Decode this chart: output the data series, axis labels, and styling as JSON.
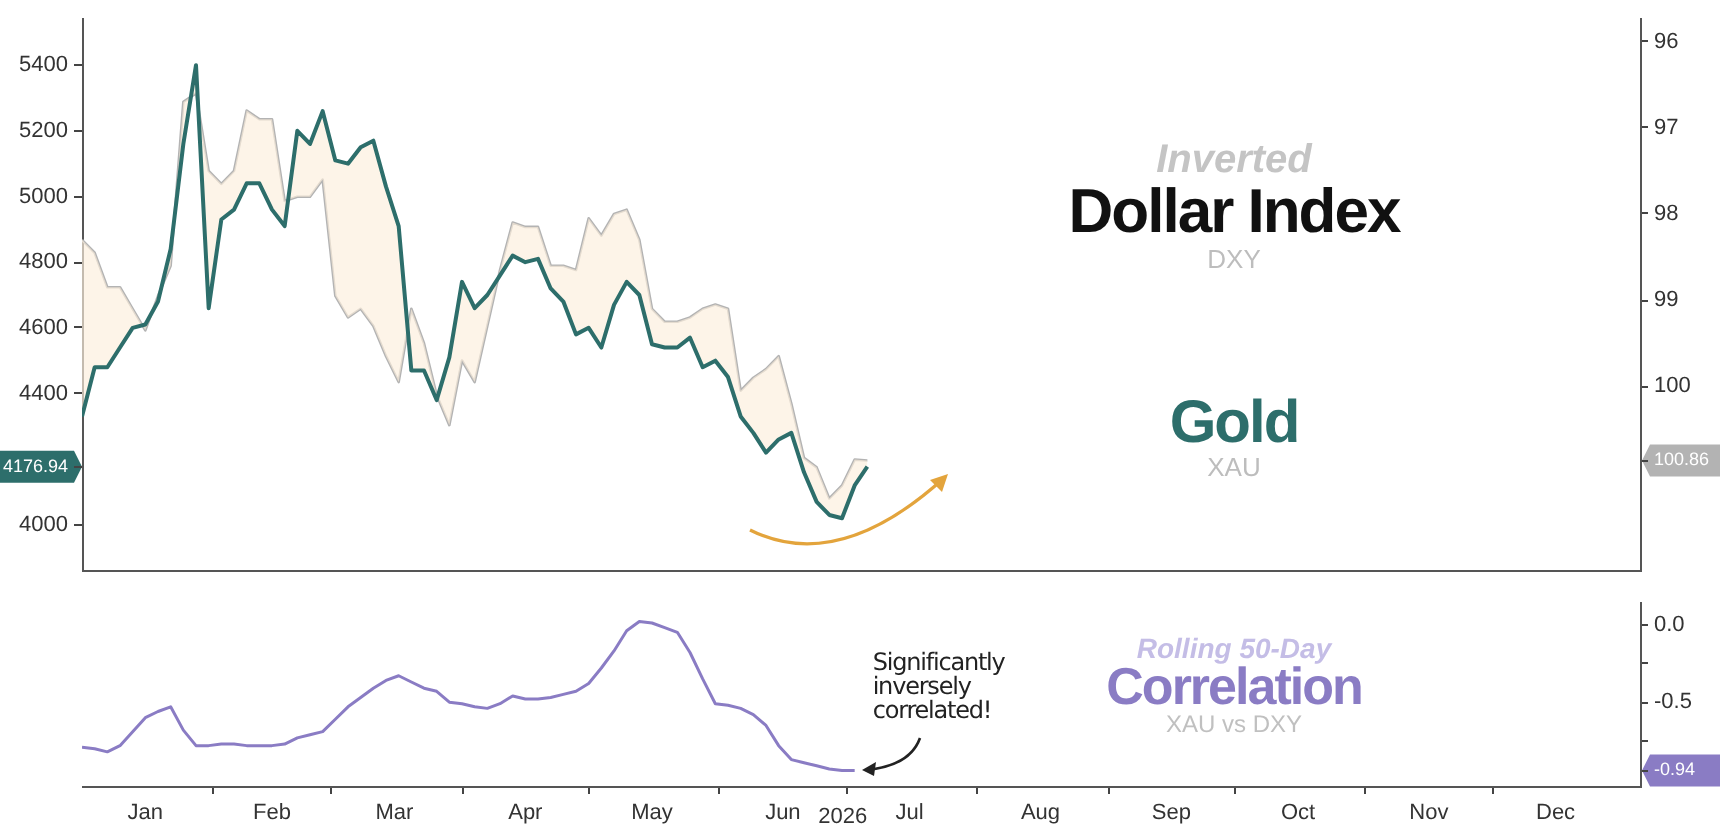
{
  "chart_data": [
    {
      "type": "line",
      "xlim": [
        "2026-01-01",
        "2027-01-05"
      ],
      "ylim": [
        3860,
        5540
      ],
      "yticks": [
        4000,
        {
          "value": 4176.94,
          "label": "4176.94"
        },
        4400,
        4600,
        4800,
        5000,
        5200,
        5400
      ],
      "y2lim": [
        102.14,
        95.74
      ],
      "y2ticks": [
        96,
        97,
        98,
        99,
        100,
        {
          "value": 100.86,
          "label": "100.86"
        }
      ],
      "tick_labels": "y",
      "grid": false,
      "legend": false,
      "marker": "none",
      "line_style": "solid",
      "annotations": [
        "Inverted",
        "DXY",
        "XAU"
      ],
      "x": [
        "2026-01-01",
        "2026-01-04",
        "2026-01-07",
        "2026-01-10",
        "2026-01-13",
        "2026-01-16",
        "2026-01-19",
        "2026-01-22",
        "2026-01-25",
        "2026-01-28",
        "2026-01-31",
        "2026-02-03",
        "2026-02-06",
        "2026-02-09",
        "2026-02-12",
        "2026-02-15",
        "2026-02-18",
        "2026-02-21",
        "2026-02-24",
        "2026-02-27",
        "2026-03-02",
        "2026-03-05",
        "2026-03-08",
        "2026-03-11",
        "2026-03-14",
        "2026-03-17",
        "2026-03-20",
        "2026-03-23",
        "2026-03-26",
        "2026-03-29",
        "2026-04-01",
        "2026-04-04",
        "2026-04-07",
        "2026-04-10",
        "2026-04-13",
        "2026-04-16",
        "2026-04-19",
        "2026-04-22",
        "2026-04-25",
        "2026-04-28",
        "2026-05-01",
        "2026-05-04",
        "2026-05-07",
        "2026-05-10",
        "2026-05-13",
        "2026-05-16",
        "2026-05-19",
        "2026-05-22",
        "2026-05-25",
        "2026-05-28",
        "2026-05-31",
        "2026-06-03",
        "2026-06-06",
        "2026-06-09",
        "2026-06-12",
        "2026-06-15",
        "2026-06-18",
        "2026-06-21",
        "2026-06-24",
        "2026-06-27",
        "2026-06-30",
        "2026-07-03",
        "2026-07-06"
      ],
      "series": [
        {
          "name": "Gold",
          "color": "#2d6e6b",
          "values": [
            4330,
            4480,
            4480,
            4540,
            4600,
            4610,
            4680,
            4840,
            5160,
            5400,
            4660,
            4930,
            4960,
            5040,
            5040,
            4960,
            4910,
            5200,
            5160,
            5260,
            5110,
            5100,
            5150,
            5170,
            5030,
            4910,
            4470,
            4470,
            4380,
            4510,
            4740,
            4660,
            4700,
            4760,
            4820,
            4800,
            4810,
            4720,
            4680,
            4580,
            4600,
            4540,
            4670,
            4740,
            4700,
            4550,
            4540,
            4540,
            4570,
            4480,
            4500,
            4450,
            4330,
            4280,
            4220,
            4260,
            4280,
            4160,
            4070,
            4030,
            4020,
            4120,
            4176.94
          ]
        },
        {
          "name": "Dollar Index",
          "color": "#b3b3b3",
          "axis": "y2",
          "values": [
            98.3,
            98.45,
            98.85,
            98.85,
            99.1,
            99.35,
            98.95,
            98.6,
            96.7,
            96.6,
            97.5,
            97.65,
            97.5,
            96.8,
            96.9,
            96.9,
            97.85,
            97.8,
            97.8,
            97.6,
            98.95,
            99.2,
            99.1,
            99.3,
            99.65,
            99.95,
            99.1,
            99.5,
            100.1,
            100.45,
            99.7,
            99.95,
            99.3,
            98.65,
            98.1,
            98.15,
            98.15,
            98.6,
            98.6,
            98.65,
            98.05,
            98.25,
            98.0,
            97.95,
            98.3,
            99.1,
            99.25,
            99.25,
            99.2,
            99.1,
            99.05,
            99.1,
            100.05,
            99.9,
            99.8,
            99.65,
            100.2,
            100.83,
            100.94,
            101.3,
            101.15,
            100.85,
            100.86
          ]
        }
      ]
    },
    {
      "type": "line",
      "xlim": [
        "2026-01-01",
        "2027-01-05"
      ],
      "xlabel": "2026",
      "ylim": [
        -1.04,
        0.14
      ],
      "yticks": [
        {
          "value": 0,
          "label": "0.0"
        },
        {
          "value": -0.25,
          "label": null
        },
        {
          "value": -0.5,
          "label": "-0.5"
        },
        {
          "value": -0.75,
          "label": null
        },
        {
          "value": -0.94,
          "label": "-0.94"
        }
      ],
      "xticks": [
        {
          "value": "2026-01-16",
          "label": "Jan"
        },
        {
          "value": "2026-02-01",
          "label": null
        },
        {
          "value": "2026-02-15",
          "label": "Feb"
        },
        {
          "value": "2026-03-01",
          "label": null
        },
        {
          "value": "2026-03-16",
          "label": "Mar"
        },
        {
          "value": "2026-04-01",
          "label": null
        },
        {
          "value": "2026-04-16",
          "label": "Apr"
        },
        {
          "value": "2026-05-01",
          "label": null
        },
        {
          "value": "2026-05-16",
          "label": "May"
        },
        {
          "value": "2026-06-01",
          "label": null
        },
        {
          "value": "2026-06-16",
          "label": "Jun"
        },
        {
          "value": "2026-07-01",
          "label": null
        },
        {
          "value": "2026-07-16",
          "label": "Jul"
        },
        {
          "value": "2026-08-01",
          "label": null
        },
        {
          "value": "2026-08-16",
          "label": "Aug"
        },
        {
          "value": "2026-09-01",
          "label": null
        },
        {
          "value": "2026-09-16",
          "label": "Sep"
        },
        {
          "value": "2026-10-01",
          "label": null
        },
        {
          "value": "2026-10-16",
          "label": "Oct"
        },
        {
          "value": "2026-11-01",
          "label": null
        },
        {
          "value": "2026-11-16",
          "label": "Nov"
        },
        {
          "value": "2026-12-01",
          "label": null
        },
        {
          "value": "2026-12-16",
          "label": "Dec"
        }
      ],
      "grid": false,
      "legend": false,
      "marker": "none",
      "line_style": "solid",
      "annotations": [
        "Rolling 50-Day",
        "XAU vs DXY",
        {
          "text": "Significantly inversely correlated!",
          "x": "2026-07-03",
          "y": -0.94
        }
      ],
      "x": [
        "2026-01-01",
        "2026-01-04",
        "2026-01-07",
        "2026-01-10",
        "2026-01-13",
        "2026-01-16",
        "2026-01-19",
        "2026-01-22",
        "2026-01-25",
        "2026-01-28",
        "2026-01-31",
        "2026-02-03",
        "2026-02-06",
        "2026-02-09",
        "2026-02-12",
        "2026-02-15",
        "2026-02-18",
        "2026-02-21",
        "2026-02-24",
        "2026-02-27",
        "2026-03-02",
        "2026-03-05",
        "2026-03-08",
        "2026-03-11",
        "2026-03-14",
        "2026-03-17",
        "2026-03-20",
        "2026-03-23",
        "2026-03-26",
        "2026-03-29",
        "2026-04-01",
        "2026-04-04",
        "2026-04-07",
        "2026-04-10",
        "2026-04-13",
        "2026-04-16",
        "2026-04-19",
        "2026-04-22",
        "2026-04-25",
        "2026-04-28",
        "2026-05-01",
        "2026-05-04",
        "2026-05-07",
        "2026-05-10",
        "2026-05-13",
        "2026-05-16",
        "2026-05-19",
        "2026-05-22",
        "2026-05-25",
        "2026-05-28",
        "2026-05-31",
        "2026-06-03",
        "2026-06-06",
        "2026-06-09",
        "2026-06-12",
        "2026-06-15",
        "2026-06-18",
        "2026-06-21",
        "2026-06-24",
        "2026-06-27",
        "2026-06-30",
        "2026-07-03"
      ],
      "series": [
        {
          "name": "Correlation",
          "color": "#8a7cc4",
          "values": [
            -0.79,
            -0.8,
            -0.82,
            -0.78,
            -0.69,
            -0.6,
            -0.56,
            -0.53,
            -0.68,
            -0.78,
            -0.78,
            -0.77,
            -0.77,
            -0.78,
            -0.78,
            -0.78,
            -0.77,
            -0.73,
            -0.71,
            -0.69,
            -0.61,
            -0.53,
            -0.47,
            -0.41,
            -0.36,
            -0.33,
            -0.37,
            -0.41,
            -0.43,
            -0.5,
            -0.51,
            -0.53,
            -0.54,
            -0.51,
            -0.46,
            -0.48,
            -0.48,
            -0.47,
            -0.45,
            -0.43,
            -0.38,
            -0.28,
            -0.17,
            -0.04,
            0.02,
            0.01,
            -0.02,
            -0.05,
            -0.18,
            -0.35,
            -0.51,
            -0.52,
            -0.54,
            -0.58,
            -0.65,
            -0.78,
            -0.87,
            -0.89,
            -0.91,
            -0.93,
            -0.94,
            -0.94
          ]
        }
      ]
    }
  ]
}
